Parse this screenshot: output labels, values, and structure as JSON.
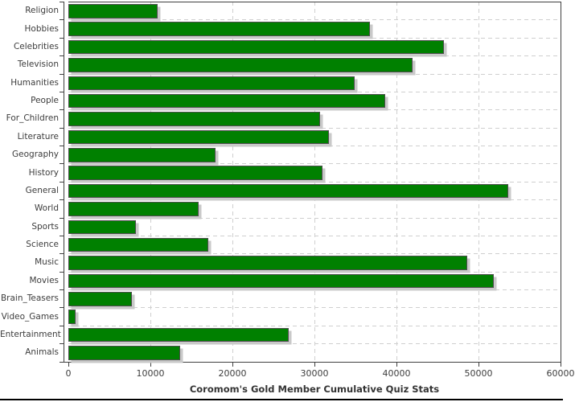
{
  "chart_data": {
    "type": "bar",
    "orientation": "horizontal",
    "title": "Coromom's Gold Member Cumulative Quiz Stats",
    "categories": [
      "Religion",
      "Hobbies",
      "Celebrities",
      "Television",
      "Humanities",
      "People",
      "For_Children",
      "Literature",
      "Geography",
      "History",
      "General",
      "World",
      "Sports",
      "Science",
      "Music",
      "Movies",
      "Brain_Teasers",
      "Video_Games",
      "Entertainment",
      "Animals"
    ],
    "values": [
      10800,
      36700,
      45700,
      41900,
      34900,
      38600,
      30600,
      31700,
      17900,
      30900,
      53600,
      15800,
      8200,
      17000,
      48600,
      51800,
      7700,
      800,
      26800,
      13600
    ],
    "xlim": [
      0,
      60000
    ],
    "x_ticks": [
      0,
      10000,
      20000,
      30000,
      40000,
      50000,
      60000
    ],
    "x_tick_labels": [
      "0",
      "10000",
      "20000",
      "30000",
      "40000",
      "50000",
      "60000"
    ],
    "grid": "dashed",
    "legend": "none",
    "colors": {
      "bar_fill": "#008000",
      "bar_outline": "#4d4d4d",
      "bar_shadow": "#c9c9c9",
      "axis": "#3f3f3f",
      "gridline": "#cfcfcf",
      "title_text": "#333333",
      "label_text": "#3d3d3d"
    }
  }
}
